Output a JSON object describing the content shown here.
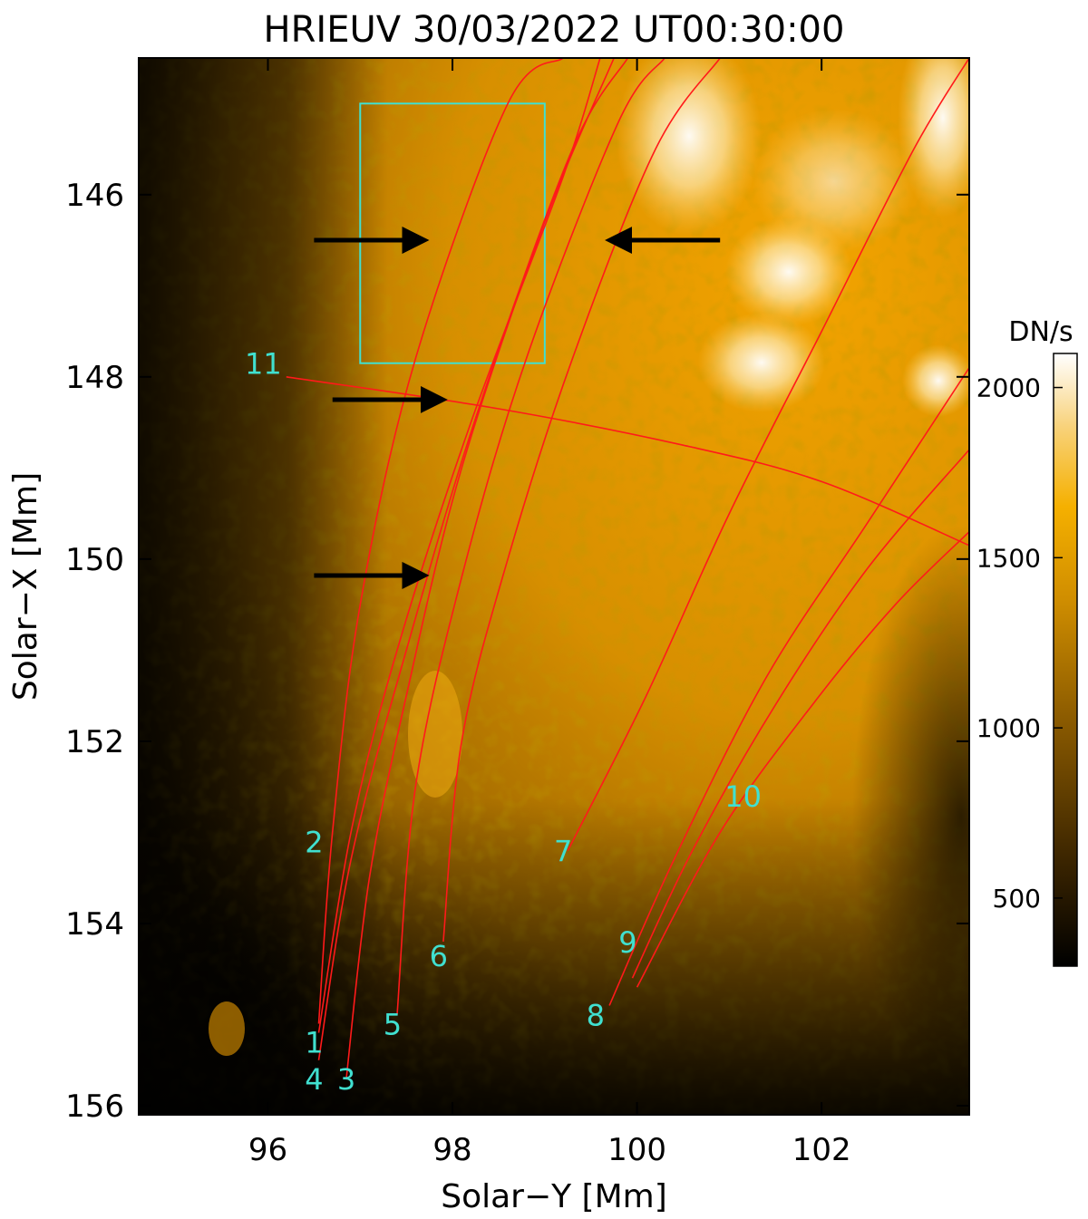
{
  "chart_data": {
    "type": "heatmap",
    "title": "HRIEUV 30/03/2022 UT00:30:00",
    "xlabel": "Solar−Y [Mm]",
    "ylabel": "Solar−X [Mm]",
    "xlim": [
      94.6,
      103.6
    ],
    "ylim": [
      156.1,
      144.5
    ],
    "y_inverted": true,
    "xticks": [
      96,
      98,
      100,
      102
    ],
    "xtick_labels": [
      "96",
      "98",
      "100",
      "102"
    ],
    "yticks": [
      146,
      148,
      150,
      152,
      154,
      156
    ],
    "ytick_labels": [
      "146",
      "148",
      "150",
      "152",
      "154",
      "156"
    ],
    "colorbar": {
      "label": "DN/s",
      "range": [
        300,
        2100
      ],
      "ticks": [
        500,
        1000,
        1500,
        2000
      ],
      "tick_labels": [
        "500",
        "1000",
        "1500",
        "2000"
      ]
    },
    "colormap": [
      "#000000",
      "#3a2400",
      "#8a5a00",
      "#d08e00",
      "#f5b000",
      "#f8d27a",
      "#ffffff"
    ],
    "box": {
      "x": [
        97.0,
        99.0
      ],
      "y": [
        145.0,
        147.85
      ],
      "color": "#40e0d0"
    },
    "arrows": [
      {
        "from": [
          96.5,
          146.5
        ],
        "to": [
          97.7,
          146.5
        ]
      },
      {
        "from": [
          100.9,
          146.5
        ],
        "to": [
          99.7,
          146.5
        ]
      },
      {
        "from": [
          96.7,
          148.25
        ],
        "to": [
          97.9,
          148.25
        ]
      },
      {
        "from": [
          96.5,
          150.18
        ],
        "to": [
          97.7,
          150.18
        ]
      }
    ],
    "lines_color": "#ff1a1a",
    "label_color": "#40e0d0",
    "fieldlines": [
      {
        "name": "1",
        "label_pos": [
          96.5,
          155.3
        ],
        "points": [
          [
            96.55,
            155.1
          ],
          [
            96.7,
            153.0
          ],
          [
            97.0,
            150.5
          ],
          [
            97.6,
            147.8
          ],
          [
            98.6,
            145.0
          ],
          [
            99.2,
            144.5
          ]
        ]
      },
      {
        "name": "2",
        "label_pos": [
          96.5,
          153.1
        ],
        "points": [
          [
            96.55,
            155.2
          ],
          [
            96.9,
            153.0
          ],
          [
            97.4,
            151.0
          ],
          [
            98.2,
            148.5
          ],
          [
            99.2,
            145.8
          ],
          [
            99.6,
            144.5
          ]
        ]
      },
      {
        "name": "3",
        "label_pos": [
          96.85,
          155.7
        ],
        "points": [
          [
            96.85,
            155.7
          ],
          [
            97.1,
            153.5
          ],
          [
            97.5,
            151.5
          ],
          [
            98.1,
            149.0
          ],
          [
            99.0,
            146.3
          ],
          [
            99.75,
            144.5
          ]
        ]
      },
      {
        "name": "4",
        "label_pos": [
          96.5,
          155.7
        ],
        "points": [
          [
            96.55,
            155.5
          ],
          [
            96.9,
            153.3
          ],
          [
            97.5,
            151.0
          ],
          [
            98.3,
            148.3
          ],
          [
            99.3,
            145.5
          ],
          [
            99.9,
            144.5
          ]
        ]
      },
      {
        "name": "5",
        "label_pos": [
          97.35,
          155.1
        ],
        "points": [
          [
            97.4,
            155.0
          ],
          [
            97.6,
            152.5
          ],
          [
            98.1,
            150.2
          ],
          [
            98.8,
            147.8
          ],
          [
            99.8,
            145.2
          ],
          [
            100.3,
            144.5
          ]
        ]
      },
      {
        "name": "6",
        "label_pos": [
          97.85,
          154.35
        ],
        "points": [
          [
            97.9,
            154.2
          ],
          [
            98.1,
            152.0
          ],
          [
            98.6,
            150.0
          ],
          [
            99.3,
            147.8
          ],
          [
            100.2,
            145.5
          ],
          [
            100.9,
            144.5
          ]
        ]
      },
      {
        "name": "7",
        "label_pos": [
          99.2,
          153.2
        ],
        "points": [
          [
            99.25,
            153.2
          ],
          [
            100.1,
            151.5
          ],
          [
            101.0,
            149.5
          ],
          [
            102.0,
            147.5
          ],
          [
            103.0,
            145.5
          ],
          [
            103.6,
            144.5
          ]
        ]
      },
      {
        "name": "8",
        "label_pos": [
          99.55,
          155.0
        ],
        "points": [
          [
            99.7,
            154.9
          ],
          [
            100.4,
            153.3
          ],
          [
            101.4,
            151.3
          ],
          [
            102.5,
            149.6
          ],
          [
            103.6,
            147.9
          ]
        ]
      },
      {
        "name": "9",
        "label_pos": [
          99.9,
          154.2
        ],
        "points": [
          [
            99.95,
            154.6
          ],
          [
            100.6,
            153.2
          ],
          [
            101.5,
            151.6
          ],
          [
            102.5,
            150.1
          ],
          [
            103.6,
            148.8
          ]
        ]
      },
      {
        "name": "10",
        "label_pos": [
          101.15,
          152.6
        ],
        "points": [
          [
            100.0,
            154.7
          ],
          [
            100.9,
            153.0
          ],
          [
            101.9,
            151.6
          ],
          [
            102.8,
            150.5
          ],
          [
            103.6,
            149.7
          ]
        ]
      },
      {
        "name": "11",
        "label_pos": [
          95.95,
          147.85
        ],
        "points": [
          [
            96.2,
            148.0
          ],
          [
            98.5,
            148.35
          ],
          [
            100.5,
            148.75
          ],
          [
            102.0,
            149.15
          ],
          [
            103.6,
            149.85
          ]
        ]
      }
    ]
  }
}
